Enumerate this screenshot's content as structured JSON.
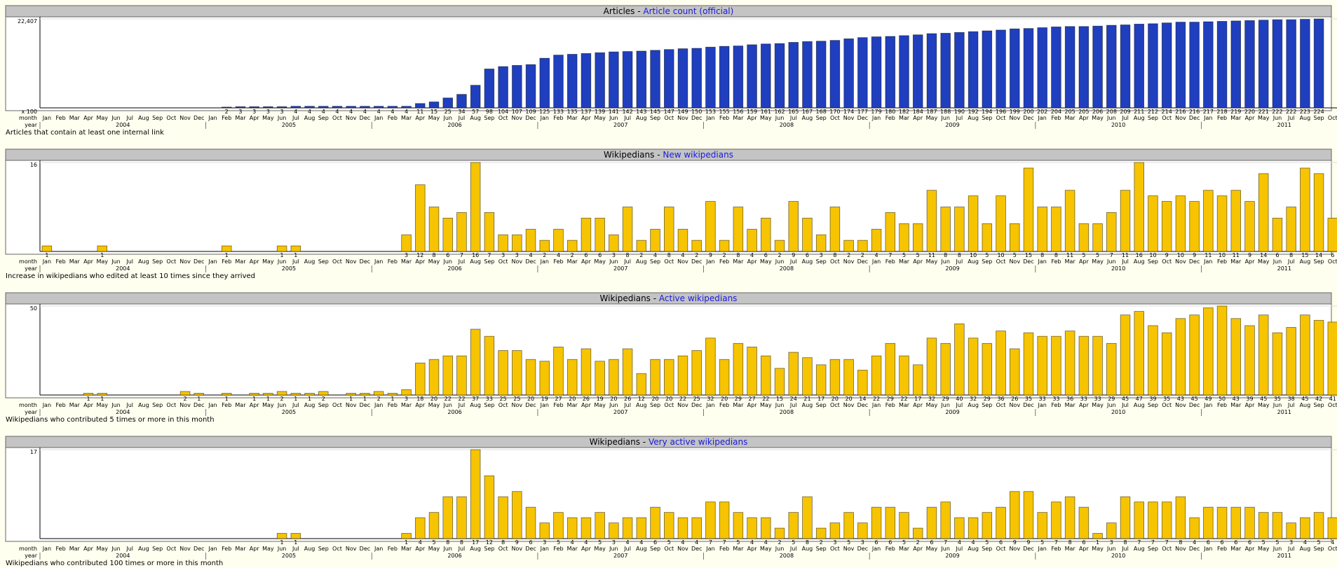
{
  "chart_data": [
    {
      "type": "bar",
      "title": "Articles -",
      "subtitle": "Article count (official)",
      "footnote": "Articles that contain at least one internal link",
      "unit_label": "x 100",
      "month_label": "month",
      "year_label": "year",
      "years": [
        "2004",
        "2005",
        "2006",
        "2007",
        "2008",
        "2009",
        "2010",
        "2011"
      ],
      "categories": [
        "Jan",
        "Feb",
        "Mar",
        "Apr",
        "May",
        "Jun",
        "Jul",
        "Aug",
        "Sep",
        "Oct",
        "Nov",
        "Dec",
        "Jan",
        "Feb",
        "Mar",
        "Apr",
        "May",
        "Jun",
        "Jul",
        "Aug",
        "Sep",
        "Oct",
        "Nov",
        "Dec",
        "Jan",
        "Feb",
        "Mar",
        "Apr",
        "May",
        "Jun",
        "Jul",
        "Aug",
        "Sep",
        "Oct",
        "Nov",
        "Dec",
        "Jan",
        "Feb",
        "Mar",
        "Apr",
        "May",
        "Jun",
        "Jul",
        "Aug",
        "Sep",
        "Oct",
        "Nov",
        "Dec",
        "Jan",
        "Feb",
        "Mar",
        "Apr",
        "May",
        "Jun",
        "Jul",
        "Aug",
        "Sep",
        "Oct",
        "Nov",
        "Dec",
        "Jan",
        "Feb",
        "Mar",
        "Apr",
        "May",
        "Jun",
        "Jul",
        "Aug",
        "Sep",
        "Oct",
        "Nov",
        "Dec",
        "Jan",
        "Feb",
        "Mar",
        "Apr",
        "May",
        "Jun",
        "Jul",
        "Aug",
        "Sep",
        "Oct",
        "Nov",
        "Dec",
        "Jan",
        "Feb",
        "Mar",
        "Apr",
        "May",
        "Jun",
        "Jul",
        "Aug",
        "Sep",
        "Oct"
      ],
      "values": [
        null,
        null,
        null,
        null,
        null,
        null,
        null,
        null,
        null,
        null,
        null,
        null,
        null,
        200,
        300,
        300,
        300,
        300,
        400,
        400,
        400,
        400,
        400,
        400,
        400,
        400,
        400,
        1100,
        1500,
        2500,
        3400,
        5700,
        9800,
        10400,
        10700,
        10900,
        12500,
        13300,
        13500,
        13700,
        13900,
        14100,
        14200,
        14300,
        14500,
        14700,
        14900,
        15000,
        15300,
        15500,
        15600,
        15900,
        16100,
        16200,
        16500,
        16700,
        16800,
        17000,
        17400,
        17700,
        17900,
        18000,
        18200,
        18400,
        18700,
        18800,
        19000,
        19200,
        19400,
        19600,
        19900,
        20000,
        20200,
        20400,
        20500,
        20500,
        20600,
        20800,
        20900,
        21100,
        21200,
        21400,
        21600,
        21600,
        21700,
        21800,
        21900,
        22000,
        22100,
        22200,
        22200,
        22300,
        22400,
        null
      ],
      "value_labels": [
        null,
        null,
        null,
        null,
        null,
        null,
        null,
        null,
        null,
        null,
        null,
        null,
        null,
        "2",
        "3",
        "3",
        "3",
        "3",
        "4",
        "4",
        "4",
        "4",
        "4",
        "4",
        "4",
        "4",
        "4",
        "11",
        "15",
        "25",
        "34",
        "57",
        "98",
        "104",
        "107",
        "109",
        "125",
        "133",
        "135",
        "137",
        "139",
        "141",
        "142",
        "143",
        "145",
        "147",
        "149",
        "150",
        "153",
        "155",
        "156",
        "159",
        "161",
        "162",
        "165",
        "167",
        "168",
        "170",
        "174",
        "177",
        "179",
        "180",
        "182",
        "184",
        "187",
        "188",
        "190",
        "192",
        "194",
        "196",
        "199",
        "200",
        "202",
        "204",
        "205",
        "205",
        "206",
        "208",
        "209",
        "211",
        "212",
        "214",
        "216",
        "216",
        "217",
        "218",
        "219",
        "220",
        "221",
        "222",
        "222",
        "223",
        "224",
        null
      ],
      "ylim": [
        0,
        22407
      ],
      "yticks": [
        {
          "value": 22407,
          "label": "22,407"
        }
      ],
      "color": "#1f3fbf"
    },
    {
      "type": "bar",
      "title": "Wikipedians -",
      "subtitle": "New wikipedians",
      "footnote": "Increase in wikipedians who edited at least 10 times since they arrived",
      "month_label": "month",
      "year_label": "year",
      "years": [
        "2004",
        "2005",
        "2006",
        "2007",
        "2008",
        "2009",
        "2010",
        "2011"
      ],
      "categories": [
        "Jan",
        "Feb",
        "Mar",
        "Apr",
        "May",
        "Jun",
        "Jul",
        "Aug",
        "Sep",
        "Oct",
        "Nov",
        "Dec",
        "Jan",
        "Feb",
        "Mar",
        "Apr",
        "May",
        "Jun",
        "Jul",
        "Aug",
        "Sep",
        "Oct",
        "Nov",
        "Dec",
        "Jan",
        "Feb",
        "Mar",
        "Apr",
        "May",
        "Jun",
        "Jul",
        "Aug",
        "Sep",
        "Oct",
        "Nov",
        "Dec",
        "Jan",
        "Feb",
        "Mar",
        "Apr",
        "May",
        "Jun",
        "Jul",
        "Aug",
        "Sep",
        "Oct",
        "Nov",
        "Dec",
        "Jan",
        "Feb",
        "Mar",
        "Apr",
        "May",
        "Jun",
        "Jul",
        "Aug",
        "Sep",
        "Oct",
        "Nov",
        "Dec",
        "Jan",
        "Feb",
        "Mar",
        "Apr",
        "May",
        "Jun",
        "Jul",
        "Aug",
        "Sep",
        "Oct",
        "Nov",
        "Dec",
        "Jan",
        "Feb",
        "Mar",
        "Apr",
        "May",
        "Jun",
        "Jul",
        "Aug",
        "Sep",
        "Oct",
        "Nov",
        "Dec",
        "Jan",
        "Feb",
        "Mar",
        "Apr",
        "May",
        "Jun",
        "Jul",
        "Aug",
        "Sep",
        "Oct"
      ],
      "values": [
        1,
        null,
        null,
        null,
        1,
        null,
        null,
        null,
        null,
        null,
        null,
        null,
        null,
        1,
        null,
        null,
        null,
        1,
        1,
        null,
        null,
        null,
        null,
        null,
        null,
        null,
        3,
        12,
        8,
        6,
        7,
        16,
        7,
        3,
        3,
        4,
        2,
        4,
        2,
        6,
        6,
        3,
        8,
        2,
        4,
        8,
        4,
        2,
        9,
        2,
        8,
        4,
        6,
        2,
        9,
        6,
        3,
        8,
        2,
        2,
        4,
        7,
        5,
        5,
        11,
        8,
        8,
        10,
        5,
        10,
        5,
        15,
        8,
        8,
        11,
        5,
        5,
        7,
        11,
        16,
        10,
        9,
        10,
        9,
        11,
        10,
        11,
        9,
        14,
        6,
        8,
        15,
        14,
        6
      ],
      "ylim": [
        0,
        16
      ],
      "yticks": [
        16
      ],
      "color": "#f6c400"
    },
    {
      "type": "bar",
      "title": "Wikipedians -",
      "subtitle": "Active wikipedians",
      "footnote": "Wikipedians who contributed 5 times or more in this month",
      "month_label": "month",
      "year_label": "year",
      "years": [
        "2004",
        "2005",
        "2006",
        "2007",
        "2008",
        "2009",
        "2010",
        "2011"
      ],
      "categories": [
        "Jan",
        "Feb",
        "Mar",
        "Apr",
        "May",
        "Jun",
        "Jul",
        "Aug",
        "Sep",
        "Oct",
        "Nov",
        "Dec",
        "Jan",
        "Feb",
        "Mar",
        "Apr",
        "May",
        "Jun",
        "Jul",
        "Aug",
        "Sep",
        "Oct",
        "Nov",
        "Dec",
        "Jan",
        "Feb",
        "Mar",
        "Apr",
        "May",
        "Jun",
        "Jul",
        "Aug",
        "Sep",
        "Oct",
        "Nov",
        "Dec",
        "Jan",
        "Feb",
        "Mar",
        "Apr",
        "May",
        "Jun",
        "Jul",
        "Aug",
        "Sep",
        "Oct",
        "Nov",
        "Dec",
        "Jan",
        "Feb",
        "Mar",
        "Apr",
        "May",
        "Jun",
        "Jul",
        "Aug",
        "Sep",
        "Oct",
        "Nov",
        "Dec",
        "Jan",
        "Feb",
        "Mar",
        "Apr",
        "May",
        "Jun",
        "Jul",
        "Aug",
        "Sep",
        "Oct",
        "Nov",
        "Dec",
        "Jan",
        "Feb",
        "Mar",
        "Apr",
        "May",
        "Jun",
        "Jul",
        "Aug",
        "Sep",
        "Oct",
        "Nov",
        "Dec",
        "Jan",
        "Feb",
        "Mar",
        "Apr",
        "May",
        "Jun",
        "Jul",
        "Aug",
        "Sep",
        "Oct"
      ],
      "values": [
        null,
        null,
        null,
        1,
        1,
        null,
        null,
        null,
        null,
        null,
        2,
        1,
        null,
        1,
        null,
        1,
        1,
        2,
        1,
        1,
        2,
        null,
        1,
        1,
        2,
        1,
        3,
        18,
        20,
        22,
        22,
        37,
        33,
        25,
        25,
        20,
        19,
        27,
        20,
        26,
        19,
        20,
        26,
        12,
        20,
        20,
        22,
        25,
        32,
        20,
        29,
        27,
        22,
        15,
        24,
        21,
        17,
        20,
        20,
        14,
        22,
        29,
        22,
        17,
        32,
        29,
        40,
        32,
        29,
        36,
        26,
        35,
        33,
        33,
        36,
        33,
        33,
        29,
        45,
        47,
        39,
        35,
        43,
        45,
        49,
        50,
        43,
        39,
        45,
        35,
        38,
        45,
        42,
        41
      ],
      "ylim": [
        0,
        50
      ],
      "yticks": [
        50
      ],
      "color": "#f6c400"
    },
    {
      "type": "bar",
      "title": "Wikipedians -",
      "subtitle": "Very active wikipedians",
      "footnote": "Wikipedians who contributed 100 times or more in this month",
      "month_label": "month",
      "year_label": "year",
      "years": [
        "2004",
        "2005",
        "2006",
        "2007",
        "2008",
        "2009",
        "2010",
        "2011"
      ],
      "categories": [
        "Jan",
        "Feb",
        "Mar",
        "Apr",
        "May",
        "Jun",
        "Jul",
        "Aug",
        "Sep",
        "Oct",
        "Nov",
        "Dec",
        "Jan",
        "Feb",
        "Mar",
        "Apr",
        "May",
        "Jun",
        "Jul",
        "Aug",
        "Sep",
        "Oct",
        "Nov",
        "Dec",
        "Jan",
        "Feb",
        "Mar",
        "Apr",
        "May",
        "Jun",
        "Jul",
        "Aug",
        "Sep",
        "Oct",
        "Nov",
        "Dec",
        "Jan",
        "Feb",
        "Mar",
        "Apr",
        "May",
        "Jun",
        "Jul",
        "Aug",
        "Sep",
        "Oct",
        "Nov",
        "Dec",
        "Jan",
        "Feb",
        "Mar",
        "Apr",
        "May",
        "Jun",
        "Jul",
        "Aug",
        "Sep",
        "Oct",
        "Nov",
        "Dec",
        "Jan",
        "Feb",
        "Mar",
        "Apr",
        "May",
        "Jun",
        "Jul",
        "Aug",
        "Sep",
        "Oct",
        "Nov",
        "Dec",
        "Jan",
        "Feb",
        "Mar",
        "Apr",
        "May",
        "Jun",
        "Jul",
        "Aug",
        "Sep",
        "Oct",
        "Nov",
        "Dec",
        "Jan",
        "Feb",
        "Mar",
        "Apr",
        "May",
        "Jun",
        "Jul",
        "Aug",
        "Sep",
        "Oct"
      ],
      "values": [
        null,
        null,
        null,
        null,
        null,
        null,
        null,
        null,
        null,
        null,
        null,
        null,
        null,
        null,
        null,
        null,
        null,
        1,
        1,
        null,
        null,
        null,
        null,
        null,
        null,
        null,
        1,
        4,
        5,
        8,
        8,
        17,
        12,
        8,
        9,
        6,
        3,
        5,
        4,
        4,
        5,
        3,
        4,
        4,
        6,
        5,
        4,
        4,
        7,
        7,
        5,
        4,
        4,
        2,
        5,
        8,
        2,
        3,
        5,
        3,
        6,
        6,
        5,
        2,
        6,
        7,
        4,
        4,
        5,
        6,
        9,
        9,
        5,
        7,
        8,
        6,
        1,
        3,
        8,
        7,
        7,
        7,
        8,
        4,
        6,
        6,
        6,
        6,
        5,
        5,
        3,
        4,
        5,
        4
      ],
      "ylim": [
        0,
        17
      ],
      "yticks": [
        17
      ],
      "color": "#f6c400"
    }
  ]
}
